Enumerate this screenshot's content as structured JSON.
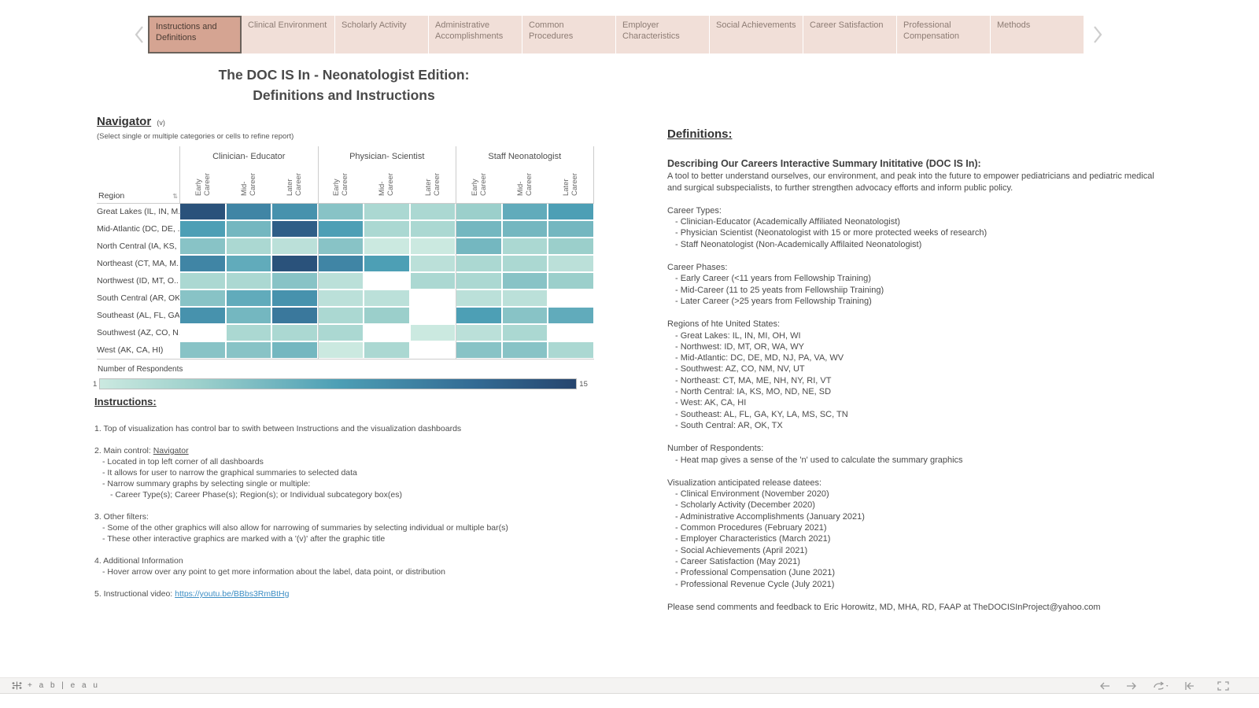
{
  "tabs": {
    "items": [
      "Instructions and Definitions",
      "Clinical Environment",
      "Scholarly Activity",
      "Administrative Accomplishments",
      "Common Procedures",
      "Employer Characteristics",
      "Social Achievements",
      "Career Satisfaction",
      "Professional Compensation",
      "Methods"
    ],
    "selected": "Instructions and Definitions"
  },
  "title": {
    "line1": "The DOC IS In - Neonatologist Edition:",
    "line2": "Definitions and Instructions"
  },
  "navigator": {
    "heading": "Navigator",
    "marker": "(v)",
    "subtitle": "(Select single or multiple categories or cells to refine report)"
  },
  "chart_data": {
    "type": "heatmap",
    "title": "Navigator",
    "row_header": "Region",
    "column_groups": [
      "Clinician- Educator",
      "Physician- Scientist",
      "Staff Neonatologist"
    ],
    "column_phases": [
      "Early\nCareer",
      "Mid-\nCareer",
      "Later\nCareer"
    ],
    "rows": [
      "Great Lakes (IL, IN, M..",
      "Mid-Atlantic (DC, DE, ..",
      "North Central (IA, KS, ..",
      "Northeast (CT, MA, M..",
      "Northwest (ID, MT, O..",
      "South Central (AR, OK..",
      "Southeast (AL, FL, GA..",
      "Southwest (AZ, CO, N..",
      "West (AK, CA, HI)"
    ],
    "values": [
      [
        14,
        10,
        9,
        5,
        3,
        3,
        4,
        7,
        8
      ],
      [
        8,
        6,
        13,
        8,
        3,
        3,
        6,
        6,
        6
      ],
      [
        5,
        3,
        2,
        5,
        1,
        1,
        6,
        3,
        4
      ],
      [
        10,
        7,
        14,
        10,
        8,
        2,
        3,
        3,
        2
      ],
      [
        3,
        3,
        5,
        2,
        null,
        3,
        3,
        5,
        4
      ],
      [
        5,
        7,
        9,
        2,
        2,
        null,
        2,
        2,
        null
      ],
      [
        9,
        6,
        11,
        3,
        4,
        null,
        8,
        5,
        7
      ],
      [
        null,
        3,
        3,
        3,
        null,
        1,
        2,
        3,
        null
      ],
      [
        5,
        5,
        6,
        1,
        3,
        null,
        5,
        5,
        3
      ]
    ],
    "legend": {
      "title": "Number of Respondents",
      "min_label": "1",
      "max_label": "15",
      "min": 1,
      "max": 15
    },
    "colorscale": {
      "stops": [
        [
          1,
          "#cbe9e0"
        ],
        [
          4,
          "#9bcfcb"
        ],
        [
          8,
          "#4d9fb5"
        ],
        [
          12,
          "#336b94"
        ],
        [
          15,
          "#26456e"
        ]
      ],
      "no_data": "#ffffff"
    }
  },
  "instructions": {
    "heading": "Instructions:",
    "lines": [
      {
        "t": "1. Top of visualization has control bar to swith between Instructions and the visualization dashboards",
        "ind": 0,
        "gap": false
      },
      {
        "t": "2. Main control: ",
        "u": "Navigator",
        "ind": 0,
        "gap": true
      },
      {
        "t": "- Located in top left corner of all dashboards",
        "ind": 1,
        "gap": false
      },
      {
        "t": "- It allows for user to narrow the graphical summaries to selected data",
        "ind": 1,
        "gap": false
      },
      {
        "t": "- Narrow summary graphs by selecting single or multiple:",
        "ind": 1,
        "gap": false
      },
      {
        "t": "- Career Type(s); Career Phase(s); Region(s); or Individual subcategory box(es)",
        "ind": 2,
        "gap": false
      },
      {
        "t": "3. Other filters:",
        "ind": 0,
        "gap": true
      },
      {
        "t": "- Some of the other graphics will also allow for narrowing of summaries by selecting individual or multiple bar(s)",
        "ind": 1,
        "gap": false
      },
      {
        "t": "- These other interactive graphics are marked with a '(v)' after the graphic title",
        "ind": 1,
        "gap": false
      },
      {
        "t": "4. Additional Information",
        "ind": 0,
        "gap": true
      },
      {
        "t": "- Hover arrow over any point to get more information about the label, data point, or distribution",
        "ind": 1,
        "gap": false
      },
      {
        "t": "5. Instructional video: ",
        "link": "https://youtu.be/BBbs3RmBtHg",
        "ind": 0,
        "gap": true
      }
    ]
  },
  "definitions": {
    "heading": "Definitions:",
    "lines": [
      {
        "t": "Describing Our Careers Interactive Summary Inititative (DOC IS In):",
        "sub": true
      },
      {
        "t": "A tool to better understand ourselves, our environment, and peak into the future to empower pediatricians and pediatric medical and surgical subspecialists, to further strengthen advocacy efforts and inform public policy."
      },
      {
        "t": "Career Types:",
        "gap": true
      },
      {
        "t": "- Clinician-Educator (Academically Affiliated Neonatologist)",
        "ind": 1
      },
      {
        "t": "- Physician Scientist (Neonatologist with 15 or more protected weeks of research)",
        "ind": 1
      },
      {
        "t": "- Staff Neonatologist (Non-Academically Affilaited Neonatologist)",
        "ind": 1
      },
      {
        "t": "Career Phases:",
        "gap": true
      },
      {
        "t": "- Early Career (<11 years from Fellowship Training)",
        "ind": 1
      },
      {
        "t": "- Mid-Career (11 to 25 yeats from Fellowshiip Training)",
        "ind": 1
      },
      {
        "t": "- Later Career (>25 years from Fellowship Training)",
        "ind": 1
      },
      {
        "t": "Regions of hte United States:",
        "gap": true
      },
      {
        "t": "- Great Lakes: IL, IN, MI, OH, WI",
        "ind": 1
      },
      {
        "t": "- Northwest: ID, MT, OR, WA, WY",
        "ind": 1
      },
      {
        "t": "- Mid-Atlantic: DC, DE, MD, NJ, PA, VA, WV",
        "ind": 1
      },
      {
        "t": "- Southwest: AZ, CO, NM, NV, UT",
        "ind": 1
      },
      {
        "t": "- Northeast: CT, MA, ME, NH, NY, RI, VT",
        "ind": 1
      },
      {
        "t": "- North Central: IA, KS, MO, ND, NE, SD",
        "ind": 1
      },
      {
        "t": "- West: AK, CA, HI",
        "ind": 1
      },
      {
        "t": "- Southeast: AL, FL, GA, KY, LA, MS, SC, TN",
        "ind": 1
      },
      {
        "t": "- South Central: AR, OK, TX",
        "ind": 1
      },
      {
        "t": "Number of Respondents:",
        "gap": true
      },
      {
        "t": "- Heat map gives a sense of the 'n' used to calculate the summary graphics",
        "ind": 1
      },
      {
        "t": "Visualization anticipated release datees:",
        "gap": true
      },
      {
        "t": "- Clinical Environment (November 2020)",
        "ind": 1
      },
      {
        "t": "- Scholarly Activity (December 2020)",
        "ind": 1
      },
      {
        "t": "- Administrative Accomplishments (January 2021)",
        "ind": 1
      },
      {
        "t": "- Common Procedures (February 2021)",
        "ind": 1
      },
      {
        "t": "- Employer Characteristics (March 2021)",
        "ind": 1
      },
      {
        "t": "- Social Achievements (April 2021)",
        "ind": 1
      },
      {
        "t": "- Career Satisfaction (May 2021)",
        "ind": 1
      },
      {
        "t": "- Professional Compensation (June 2021)",
        "ind": 1
      },
      {
        "t": "- Professional Revenue Cycle (July 2021)",
        "ind": 1
      },
      {
        "t": "Please send comments and feedback to Eric Horowitz, MD, MHA, RD, FAAP at TheDOCISInProject@yahoo.com",
        "gap": true
      }
    ]
  },
  "footer": {
    "logo_word": "+ a b | e a u",
    "icons": [
      "undo-arrow-icon",
      "redo-arrow-icon",
      "replay-icon",
      "reset-view-icon",
      "fullscreen-icon"
    ]
  }
}
